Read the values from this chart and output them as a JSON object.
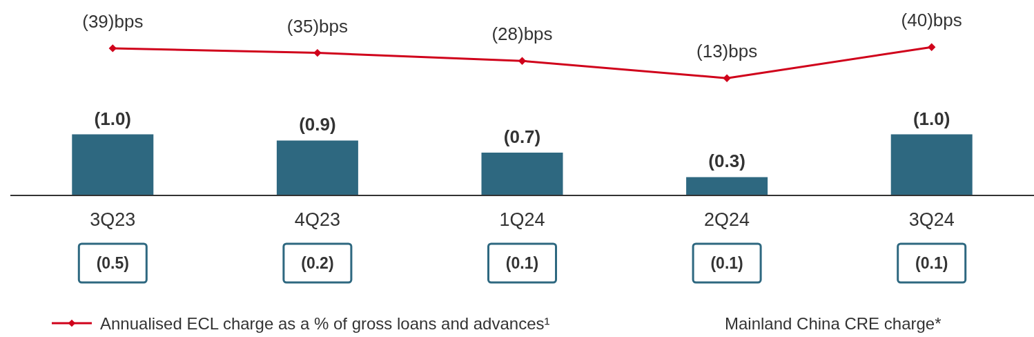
{
  "chart_data": {
    "type": "bar",
    "legend": "bottom",
    "marker": "diamond",
    "tick_labels": false,
    "ylim": [
      0,
      3.2
    ],
    "y2lim": [
      -89,
      81
    ],
    "categories": [
      "3Q23",
      "4Q23",
      "1Q24",
      "2Q24",
      "3Q24"
    ],
    "series": [
      {
        "color": "#2e6880",
        "values": [
          1.0,
          0.9,
          0.7,
          0.3,
          1.0
        ],
        "value_labels": [
          "(1.0)",
          "(0.9)",
          "(0.7)",
          "(0.3)",
          "(1.0)"
        ]
      },
      {
        "type": "line",
        "axis": "y2",
        "name": "Annualised ECL charge as a % of gross loans and advances¹",
        "color": "#d0021b",
        "values": [
          39,
          35,
          28,
          13,
          40
        ],
        "value_labels": [
          "(39)bps",
          "(35)bps",
          "(28)bps",
          "(13)bps",
          "(40)bps"
        ]
      }
    ],
    "annotations": [
      "(0.5)",
      "(0.2)",
      "(0.1)",
      "(0.1)",
      "(0.1)",
      "Mainland China CRE charge*"
    ]
  }
}
